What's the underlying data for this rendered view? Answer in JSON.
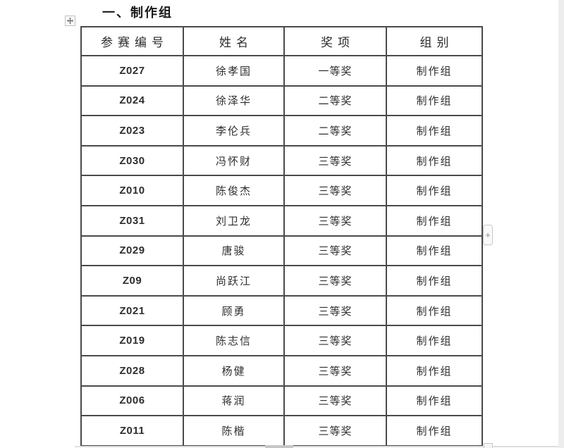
{
  "title": "一、制作组",
  "table": {
    "headers": [
      "参赛编号",
      "姓名",
      "奖项",
      "组别"
    ],
    "rows": [
      [
        "Z027",
        "徐孝国",
        "一等奖",
        "制作组"
      ],
      [
        "Z024",
        "徐泽华",
        "二等奖",
        "制作组"
      ],
      [
        "Z023",
        "李伦兵",
        "二等奖",
        "制作组"
      ],
      [
        "Z030",
        "冯怀财",
        "三等奖",
        "制作组"
      ],
      [
        "Z010",
        "陈俊杰",
        "三等奖",
        "制作组"
      ],
      [
        "Z031",
        "刘卫龙",
        "三等奖",
        "制作组"
      ],
      [
        "Z029",
        "唐骏",
        "三等奖",
        "制作组"
      ],
      [
        "Z09",
        "尚跃江",
        "三等奖",
        "制作组"
      ],
      [
        "Z021",
        "顾勇",
        "三等奖",
        "制作组"
      ],
      [
        "Z019",
        "陈志信",
        "三等奖",
        "制作组"
      ],
      [
        "Z028",
        "杨健",
        "三等奖",
        "制作组"
      ],
      [
        "Z006",
        "蒋润",
        "三等奖",
        "制作组"
      ],
      [
        "Z011",
        "陈楷",
        "三等奖",
        "制作组"
      ]
    ]
  },
  "controls": {
    "add_button_label": "+"
  },
  "icons": {
    "move_table": "four-way-move-arrows",
    "add": "plus"
  },
  "colors": {
    "table_border": "#4a4a4a",
    "text": "#2e2e2e",
    "title": "#1a1a1a",
    "scrollbar": "#dedede"
  }
}
